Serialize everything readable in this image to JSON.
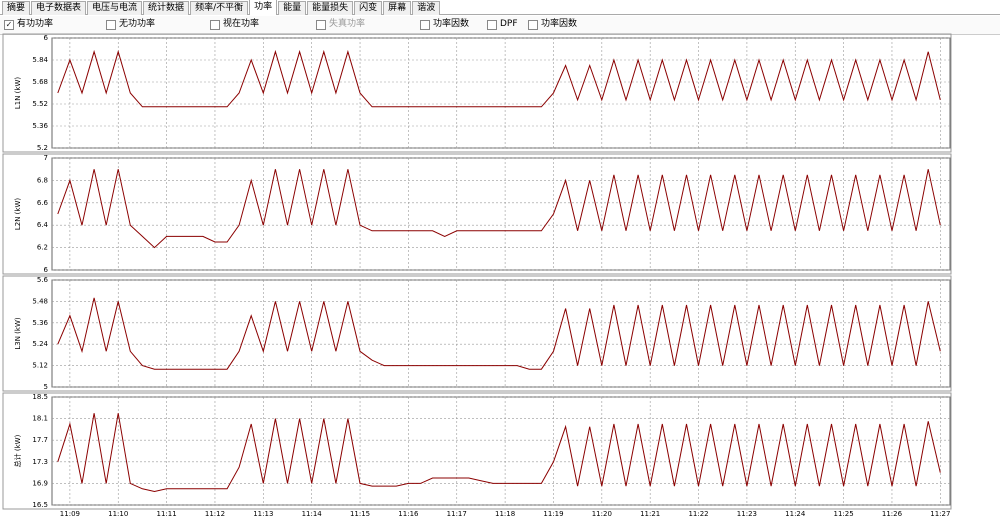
{
  "ui": {
    "tabs": [
      {
        "label": "摘要"
      },
      {
        "label": "电子数据表"
      },
      {
        "label": "电压与电流"
      },
      {
        "label": "统计数据"
      },
      {
        "label": "频率/不平衡"
      },
      {
        "label": "功率",
        "active": true
      },
      {
        "label": "能量"
      },
      {
        "label": "能量损失"
      },
      {
        "label": "闪变"
      },
      {
        "label": "屏幕"
      },
      {
        "label": "谐波"
      }
    ],
    "checkboxes": [
      {
        "label": "有功功率",
        "checked": true
      },
      {
        "label": "无功功率"
      },
      {
        "label": "视在功率"
      },
      {
        "label": "失真功率",
        "disabled": true
      },
      {
        "label": "功率因数"
      },
      {
        "label": "DPF"
      },
      {
        "label": "功率因数"
      }
    ]
  },
  "chart_data": [
    {
      "type": "line",
      "y_label": "L1N (kW)",
      "ylim": [
        5.2,
        6
      ],
      "yticks": [
        5.2,
        5.36,
        5.52,
        5.68,
        5.84,
        6
      ],
      "xlim": [
        8.63,
        27.2
      ],
      "grid": true,
      "x": [
        8.75,
        9,
        9.25,
        9.5,
        9.75,
        10,
        10.25,
        10.5,
        10.75,
        11,
        11.25,
        11.5,
        11.75,
        12,
        12.25,
        12.5,
        12.75,
        13,
        13.25,
        13.5,
        13.75,
        14,
        14.25,
        14.5,
        14.75,
        15,
        15.25,
        15.5,
        15.75,
        16,
        16.25,
        16.5,
        16.75,
        17,
        17.25,
        17.5,
        17.75,
        18,
        18.25,
        18.5,
        18.75,
        19,
        19.25,
        19.5,
        19.75,
        20,
        20.25,
        20.5,
        20.75,
        21,
        21.25,
        21.5,
        21.75,
        22,
        22.25,
        22.5,
        22.75,
        23,
        23.25,
        23.5,
        23.75,
        24,
        24.25,
        24.5,
        24.75,
        25,
        25.25,
        25.5,
        25.75,
        26,
        26.25,
        26.5,
        26.75,
        27
      ],
      "series": [
        {
          "color": "#8b0000",
          "values": [
            5.6,
            5.84,
            5.6,
            5.9,
            5.6,
            5.9,
            5.6,
            5.5,
            5.5,
            5.5,
            5.5,
            5.5,
            5.5,
            5.5,
            5.5,
            5.6,
            5.84,
            5.6,
            5.9,
            5.6,
            5.9,
            5.6,
            5.9,
            5.6,
            5.9,
            5.6,
            5.5,
            5.5,
            5.5,
            5.5,
            5.5,
            5.5,
            5.5,
            5.5,
            5.5,
            5.5,
            5.5,
            5.5,
            5.5,
            5.5,
            5.5,
            5.6,
            5.8,
            5.55,
            5.8,
            5.55,
            5.84,
            5.55,
            5.84,
            5.55,
            5.84,
            5.55,
            5.84,
            5.55,
            5.84,
            5.55,
            5.84,
            5.55,
            5.84,
            5.55,
            5.84,
            5.55,
            5.84,
            5.55,
            5.84,
            5.55,
            5.84,
            5.55,
            5.84,
            5.55,
            5.84,
            5.55,
            5.9,
            5.55
          ]
        }
      ]
    },
    {
      "type": "line",
      "y_label": "L2N (kW)",
      "ylim": [
        6,
        7
      ],
      "yticks": [
        6,
        6.2,
        6.4,
        6.6,
        6.8,
        7
      ],
      "xlim": [
        8.63,
        27.2
      ],
      "grid": true,
      "x": [
        8.75,
        9,
        9.25,
        9.5,
        9.75,
        10,
        10.25,
        10.5,
        10.75,
        11,
        11.25,
        11.5,
        11.75,
        12,
        12.25,
        12.5,
        12.75,
        13,
        13.25,
        13.5,
        13.75,
        14,
        14.25,
        14.5,
        14.75,
        15,
        15.25,
        15.5,
        15.75,
        16,
        16.25,
        16.5,
        16.75,
        17,
        17.25,
        17.5,
        17.75,
        18,
        18.25,
        18.5,
        18.75,
        19,
        19.25,
        19.5,
        19.75,
        20,
        20.25,
        20.5,
        20.75,
        21,
        21.25,
        21.5,
        21.75,
        22,
        22.25,
        22.5,
        22.75,
        23,
        23.25,
        23.5,
        23.75,
        24,
        24.25,
        24.5,
        24.75,
        25,
        25.25,
        25.5,
        25.75,
        26,
        26.25,
        26.5,
        26.75,
        27
      ],
      "series": [
        {
          "color": "#8b0000",
          "values": [
            6.5,
            6.8,
            6.4,
            6.9,
            6.4,
            6.9,
            6.4,
            6.3,
            6.2,
            6.3,
            6.3,
            6.3,
            6.3,
            6.25,
            6.25,
            6.4,
            6.8,
            6.4,
            6.9,
            6.4,
            6.9,
            6.4,
            6.9,
            6.4,
            6.9,
            6.4,
            6.35,
            6.35,
            6.35,
            6.35,
            6.35,
            6.35,
            6.3,
            6.35,
            6.35,
            6.35,
            6.35,
            6.35,
            6.35,
            6.35,
            6.35,
            6.5,
            6.8,
            6.35,
            6.8,
            6.35,
            6.85,
            6.35,
            6.85,
            6.35,
            6.85,
            6.35,
            6.85,
            6.35,
            6.85,
            6.35,
            6.85,
            6.35,
            6.85,
            6.35,
            6.85,
            6.35,
            6.85,
            6.35,
            6.85,
            6.35,
            6.85,
            6.35,
            6.85,
            6.35,
            6.85,
            6.35,
            6.9,
            6.4
          ]
        }
      ]
    },
    {
      "type": "line",
      "y_label": "L3N (kW)",
      "ylim": [
        5,
        5.6
      ],
      "yticks": [
        5,
        5.12,
        5.24,
        5.36,
        5.48,
        5.6
      ],
      "xlim": [
        8.63,
        27.2
      ],
      "grid": true,
      "x": [
        8.75,
        9,
        9.25,
        9.5,
        9.75,
        10,
        10.25,
        10.5,
        10.75,
        11,
        11.25,
        11.5,
        11.75,
        12,
        12.25,
        12.5,
        12.75,
        13,
        13.25,
        13.5,
        13.75,
        14,
        14.25,
        14.5,
        14.75,
        15,
        15.25,
        15.5,
        15.75,
        16,
        16.25,
        16.5,
        16.75,
        17,
        17.25,
        17.5,
        17.75,
        18,
        18.25,
        18.5,
        18.75,
        19,
        19.25,
        19.5,
        19.75,
        20,
        20.25,
        20.5,
        20.75,
        21,
        21.25,
        21.5,
        21.75,
        22,
        22.25,
        22.5,
        22.75,
        23,
        23.25,
        23.5,
        23.75,
        24,
        24.25,
        24.5,
        24.75,
        25,
        25.25,
        25.5,
        25.75,
        26,
        26.25,
        26.5,
        26.75,
        27
      ],
      "series": [
        {
          "color": "#8b0000",
          "values": [
            5.24,
            5.4,
            5.2,
            5.5,
            5.2,
            5.48,
            5.2,
            5.12,
            5.1,
            5.1,
            5.1,
            5.1,
            5.1,
            5.1,
            5.1,
            5.2,
            5.4,
            5.2,
            5.48,
            5.2,
            5.48,
            5.2,
            5.48,
            5.2,
            5.48,
            5.2,
            5.15,
            5.12,
            5.12,
            5.12,
            5.12,
            5.12,
            5.12,
            5.12,
            5.12,
            5.12,
            5.12,
            5.12,
            5.12,
            5.1,
            5.1,
            5.2,
            5.44,
            5.12,
            5.44,
            5.12,
            5.46,
            5.12,
            5.46,
            5.12,
            5.46,
            5.12,
            5.46,
            5.12,
            5.46,
            5.12,
            5.46,
            5.12,
            5.46,
            5.12,
            5.46,
            5.12,
            5.46,
            5.12,
            5.46,
            5.12,
            5.46,
            5.12,
            5.46,
            5.12,
            5.46,
            5.12,
            5.48,
            5.2
          ]
        }
      ]
    },
    {
      "type": "line",
      "y_label": "总计 (kW)",
      "ylim": [
        16.5,
        18.5
      ],
      "yticks": [
        16.5,
        16.9,
        17.3,
        17.7,
        18.1,
        18.5
      ],
      "xlim": [
        8.63,
        27.2
      ],
      "grid": true,
      "xticks": [
        {
          "value": 9,
          "label": "11:09"
        },
        {
          "value": 10,
          "label": "11:10"
        },
        {
          "value": 11,
          "label": "11:11"
        },
        {
          "value": 12,
          "label": "11:12"
        },
        {
          "value": 13,
          "label": "11:13"
        },
        {
          "value": 14,
          "label": "11:14"
        },
        {
          "value": 15,
          "label": "11:15"
        },
        {
          "value": 16,
          "label": "11:16"
        },
        {
          "value": 17,
          "label": "11:17"
        },
        {
          "value": 18,
          "label": "11:18"
        },
        {
          "value": 19,
          "label": "11:19"
        },
        {
          "value": 20,
          "label": "11:20"
        },
        {
          "value": 21,
          "label": "11:21"
        },
        {
          "value": 22,
          "label": "11:22"
        },
        {
          "value": 23,
          "label": "11:23"
        },
        {
          "value": 24,
          "label": "11:24"
        },
        {
          "value": 25,
          "label": "11:25"
        },
        {
          "value": 26,
          "label": "11:26"
        },
        {
          "value": 27,
          "label": "11:27"
        }
      ],
      "x": [
        8.75,
        9,
        9.25,
        9.5,
        9.75,
        10,
        10.25,
        10.5,
        10.75,
        11,
        11.25,
        11.5,
        11.75,
        12,
        12.25,
        12.5,
        12.75,
        13,
        13.25,
        13.5,
        13.75,
        14,
        14.25,
        14.5,
        14.75,
        15,
        15.25,
        15.5,
        15.75,
        16,
        16.25,
        16.5,
        16.75,
        17,
        17.25,
        17.5,
        17.75,
        18,
        18.25,
        18.5,
        18.75,
        19,
        19.25,
        19.5,
        19.75,
        20,
        20.25,
        20.5,
        20.75,
        21,
        21.25,
        21.5,
        21.75,
        22,
        22.25,
        22.5,
        22.75,
        23,
        23.25,
        23.5,
        23.75,
        24,
        24.25,
        24.5,
        24.75,
        25,
        25.25,
        25.5,
        25.75,
        26,
        26.25,
        26.5,
        26.75,
        27
      ],
      "series": [
        {
          "color": "#8b0000",
          "values": [
            17.3,
            18.0,
            16.9,
            18.2,
            16.9,
            18.2,
            16.9,
            16.8,
            16.75,
            16.8,
            16.8,
            16.8,
            16.8,
            16.8,
            16.8,
            17.2,
            18.0,
            16.9,
            18.1,
            16.9,
            18.1,
            16.9,
            18.1,
            16.9,
            18.1,
            16.9,
            16.85,
            16.85,
            16.85,
            16.9,
            16.9,
            17.0,
            17.0,
            17.0,
            17.0,
            16.95,
            16.9,
            16.9,
            16.9,
            16.9,
            16.9,
            17.3,
            17.95,
            16.85,
            17.95,
            16.85,
            18.0,
            16.85,
            18.0,
            16.85,
            18.0,
            16.85,
            18.0,
            16.85,
            18.0,
            16.85,
            18.0,
            16.85,
            18.0,
            16.85,
            18.0,
            16.85,
            18.0,
            16.85,
            18.0,
            16.85,
            18.0,
            16.85,
            18.0,
            16.85,
            18.0,
            16.85,
            18.05,
            17.1
          ]
        }
      ]
    }
  ]
}
